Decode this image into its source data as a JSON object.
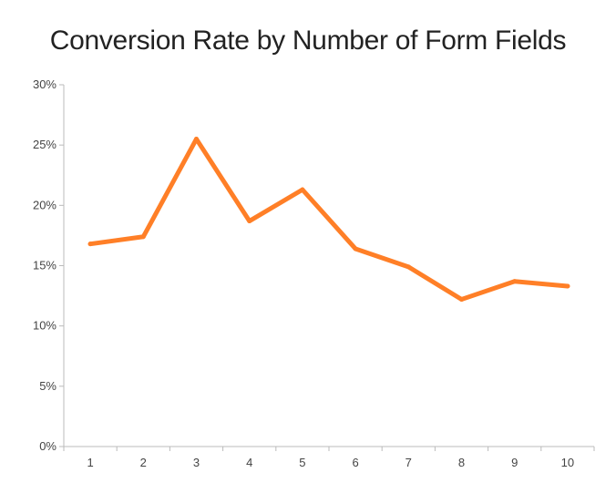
{
  "chart_data": {
    "type": "line",
    "title": "Conversion Rate by Number of Form Fields",
    "xlabel": "",
    "ylabel": "",
    "x": [
      1,
      2,
      3,
      4,
      5,
      6,
      7,
      8,
      9,
      10
    ],
    "x_tick_labels": [
      "1",
      "2",
      "3",
      "4",
      "5",
      "6",
      "7",
      "8",
      "9",
      "10"
    ],
    "series": [
      {
        "values": [
          16.8,
          17.4,
          25.5,
          18.7,
          21.3,
          16.4,
          14.9,
          12.2,
          13.7,
          13.3
        ]
      }
    ],
    "ylim": [
      0,
      30
    ],
    "y_ticks": [
      0,
      5,
      10,
      15,
      20,
      25,
      30
    ],
    "y_tick_labels": [
      "0%",
      "5%",
      "10%",
      "15%",
      "20%",
      "25%",
      "30%"
    ],
    "grid": false,
    "legend": "none",
    "line_color": "#ff7f27",
    "axis_color": "#bbbbbb"
  }
}
